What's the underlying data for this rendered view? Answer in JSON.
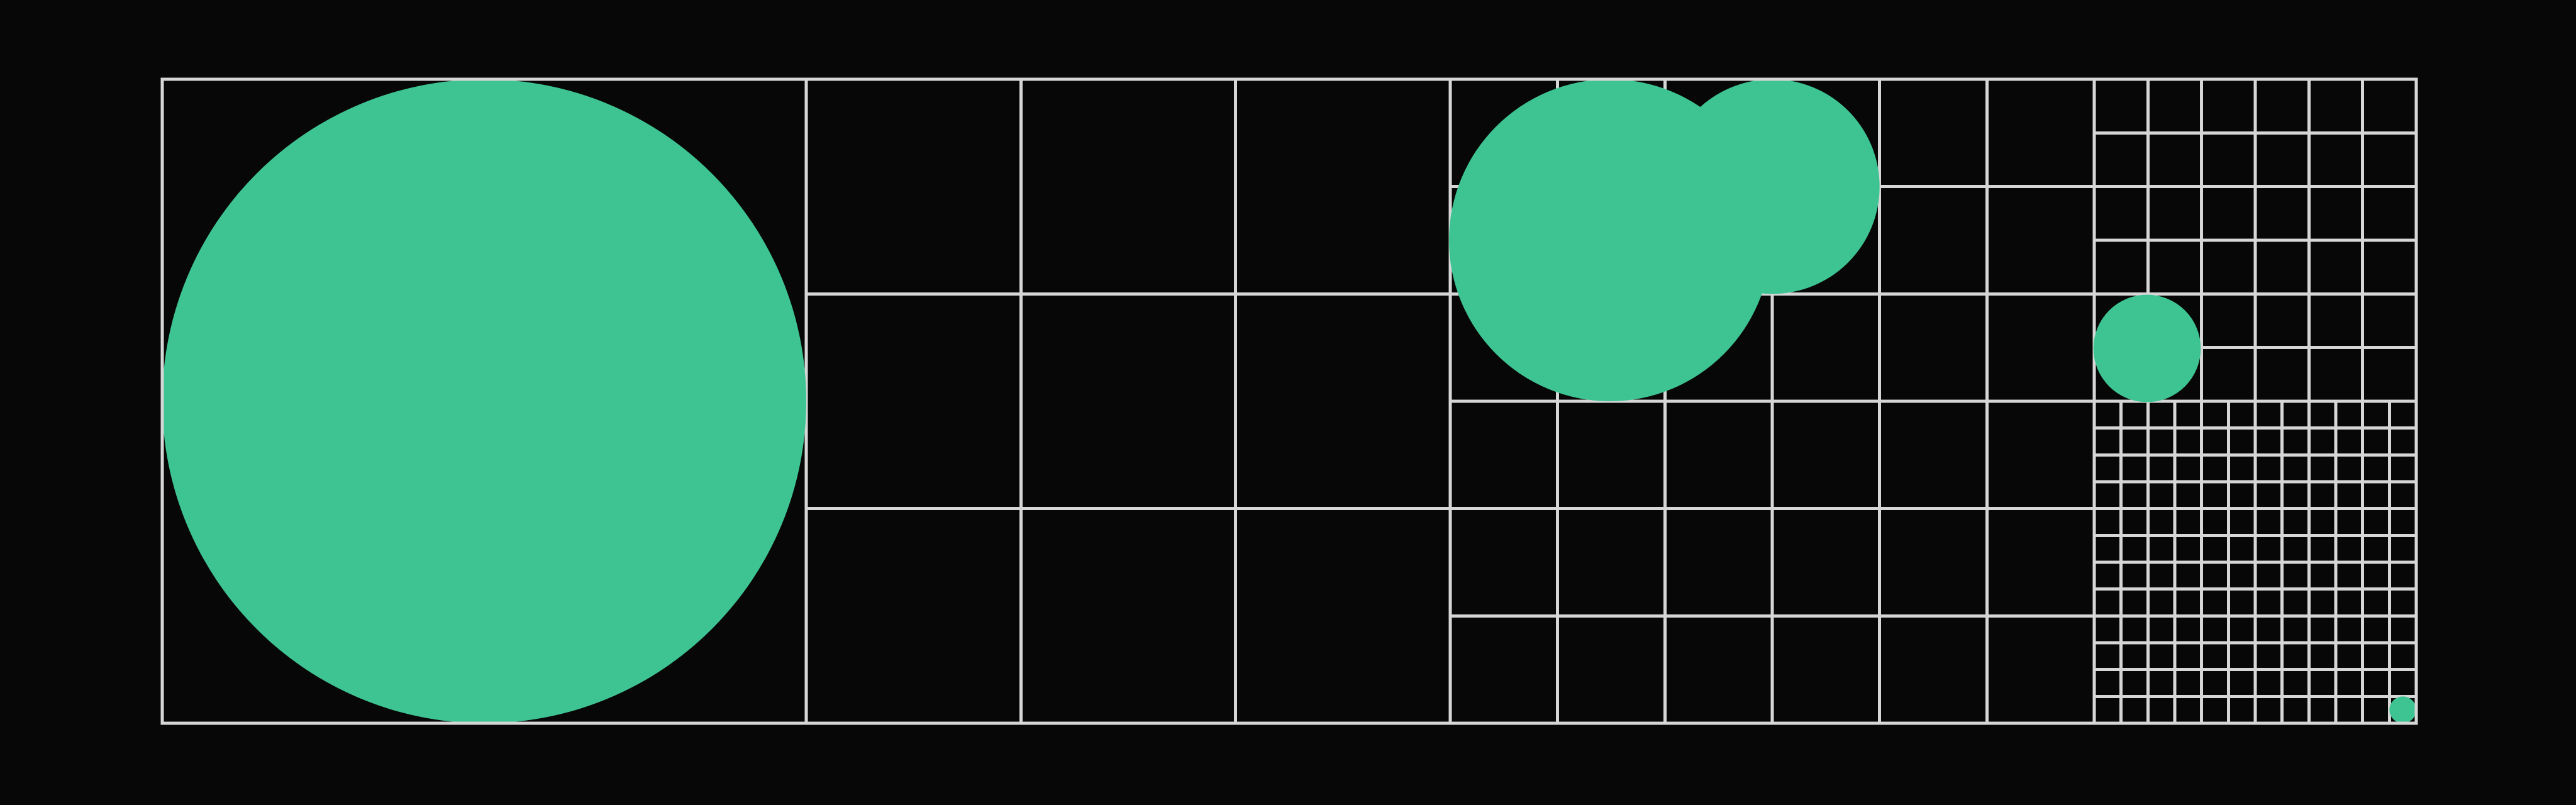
{
  "colors": {
    "background": "#070707",
    "grid_line": "#d6d6d6",
    "circle_fill": "#3ec492"
  },
  "artwork": {
    "sections": [
      {
        "name": "section-1",
        "columns": 1,
        "rows": 1
      },
      {
        "name": "section-2",
        "columns": 3,
        "rows": 3
      },
      {
        "name": "section-3",
        "columns": 6,
        "rows": 6
      },
      {
        "name": "section-4a",
        "columns": 6,
        "rows": 6
      },
      {
        "name": "section-4b",
        "columns": 12,
        "rows": 12
      }
    ],
    "circles": [
      {
        "name": "circle-xl"
      },
      {
        "name": "circle-medium"
      },
      {
        "name": "circle-large"
      },
      {
        "name": "circle-small"
      },
      {
        "name": "circle-tiny"
      }
    ]
  }
}
